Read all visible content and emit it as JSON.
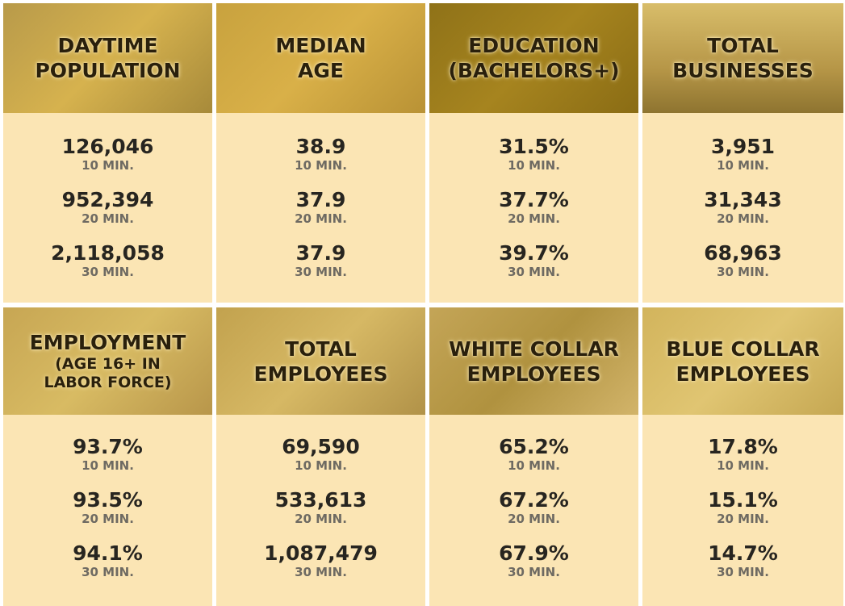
{
  "cards": [
    {
      "title": [
        "DAYTIME",
        "POPULATION"
      ],
      "stats": [
        {
          "value": "126,046",
          "label": "10 MIN."
        },
        {
          "value": "952,394",
          "label": "20 MIN."
        },
        {
          "value": "2,118,058",
          "label": "30 MIN."
        }
      ]
    },
    {
      "title": [
        "MEDIAN",
        "AGE"
      ],
      "stats": [
        {
          "value": "38.9",
          "label": "10 MIN."
        },
        {
          "value": "37.9",
          "label": "20 MIN."
        },
        {
          "value": "37.9",
          "label": "30 MIN."
        }
      ]
    },
    {
      "title": [
        "EDUCATION",
        "(BACHELORS+)"
      ],
      "stats": [
        {
          "value": "31.5%",
          "label": "10 MIN."
        },
        {
          "value": "37.7%",
          "label": "20 MIN."
        },
        {
          "value": "39.7%",
          "label": "30 MIN."
        }
      ]
    },
    {
      "title": [
        "TOTAL",
        "BUSINESSES"
      ],
      "stats": [
        {
          "value": "3,951",
          "label": "10 MIN."
        },
        {
          "value": "31,343",
          "label": "20 MIN."
        },
        {
          "value": "68,963",
          "label": "30 MIN."
        }
      ]
    },
    {
      "title": [
        "EMPLOYMENT"
      ],
      "subtitle": [
        "(AGE 16+ IN",
        "LABOR FORCE)"
      ],
      "stats": [
        {
          "value": "93.7%",
          "label": "10 MIN."
        },
        {
          "value": "93.5%",
          "label": "20 MIN."
        },
        {
          "value": "94.1%",
          "label": "30 MIN."
        }
      ]
    },
    {
      "title": [
        "TOTAL",
        "EMPLOYEES"
      ],
      "stats": [
        {
          "value": "69,590",
          "label": "10 MIN."
        },
        {
          "value": "533,613",
          "label": "20 MIN."
        },
        {
          "value": "1,087,479",
          "label": "30 MIN."
        }
      ]
    },
    {
      "title": [
        "WHITE COLLAR",
        "EMPLOYEES"
      ],
      "stats": [
        {
          "value": "65.2%",
          "label": "10 MIN."
        },
        {
          "value": "67.2%",
          "label": "20 MIN."
        },
        {
          "value": "67.9%",
          "label": "30 MIN."
        }
      ]
    },
    {
      "title": [
        "BLUE COLLAR",
        "EMPLOYEES"
      ],
      "stats": [
        {
          "value": "17.8%",
          "label": "10 MIN."
        },
        {
          "value": "15.1%",
          "label": "20 MIN."
        },
        {
          "value": "14.7%",
          "label": "30 MIN."
        }
      ]
    }
  ]
}
